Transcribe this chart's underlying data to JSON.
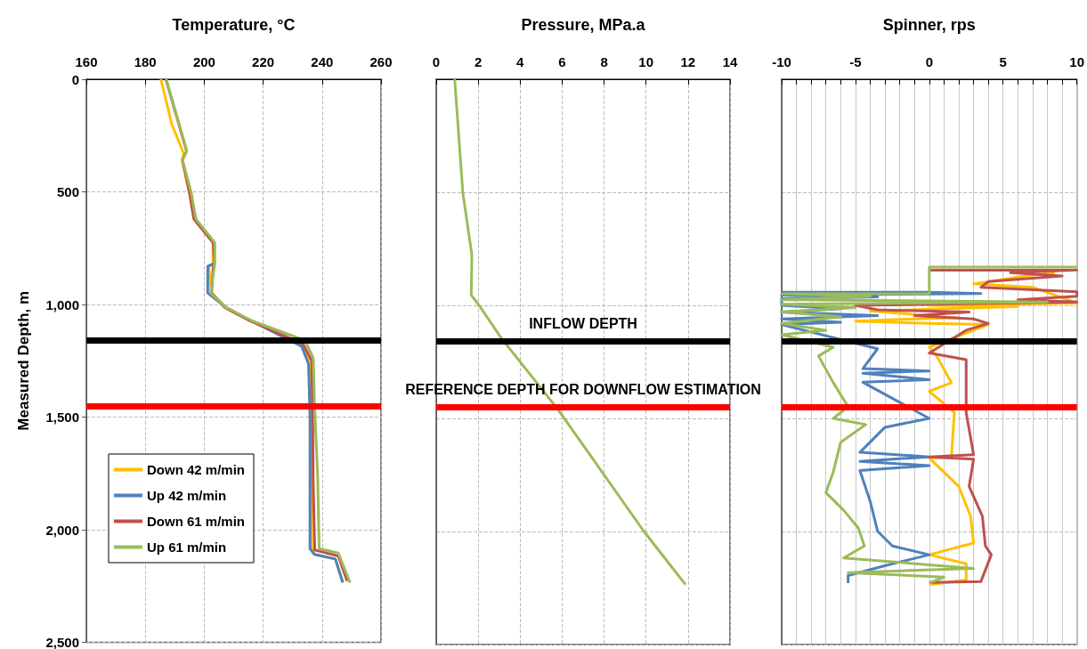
{
  "chart_data": [
    {
      "type": "line",
      "xlabel": "Temperature, °C",
      "ylabel": "Measured Depth, m",
      "xlim": [
        160,
        260
      ],
      "xticks": [
        160,
        180,
        200,
        220,
        240,
        260
      ],
      "ylim": [
        2500,
        0
      ],
      "yticks": [
        0,
        500,
        {
          "value": 1000,
          "label": "1,000"
        },
        {
          "value": 1500,
          "label": "1,500"
        },
        {
          "value": 2000,
          "label": "2,000"
        },
        {
          "value": 2500,
          "label": "2,500"
        }
      ],
      "grid": true,
      "legend": "bottom left",
      "marker": "none",
      "ref_lines": [
        {
          "axis": "y",
          "value": 1160,
          "color": "#000000"
        },
        {
          "axis": "y",
          "value": 1450,
          "color": "#ff0000"
        }
      ],
      "series": [
        {
          "name": "Down 42 m/min",
          "color": "#ffc000",
          "x": [
            185.3,
            189,
            193.1,
            192.5,
            195.1,
            196.5,
            203,
            203,
            201.5,
            202.5,
            207.5,
            216,
            233.5,
            236,
            236.2,
            236.3,
            236.5,
            237.5,
            244.5,
            247
          ],
          "values": [
            0,
            200,
            332,
            358,
            516,
            620,
            726,
            818,
            831,
            949,
            1014,
            1073,
            1180,
            1264,
            1500,
            1800,
            2084,
            2110,
            2130,
            2230
          ]
        },
        {
          "name": "Up 42 m/min",
          "color": "#4f81bd",
          "x": [
            203.5,
            201.2,
            201.2,
            207.5,
            216,
            233,
            235.4,
            235.9,
            235.9,
            237.4,
            244.5,
            247
          ],
          "values": [
            818,
            831,
            949,
            1014,
            1073,
            1185,
            1264,
            1500,
            2084,
            2110,
            2130,
            2235
          ]
        },
        {
          "name": "Down 61 m/min",
          "color": "#c0504d",
          "x": [
            187,
            194,
            192.6,
            195,
            196.5,
            203,
            203.5,
            203,
            202.5,
            207,
            215.5,
            233.5,
            236.5,
            236.8,
            237,
            237.5,
            245.5,
            248.5
          ],
          "values": [
            0,
            319,
            358,
            503,
            621,
            726,
            818,
            837,
            949,
            1014,
            1073,
            1175,
            1250,
            1500,
            1800,
            2090,
            2117,
            2228
          ]
        },
        {
          "name": "Up 61 m/min",
          "color": "#9bbb59",
          "x": [
            187.1,
            194.1,
            192.6,
            195.6,
            197.2,
            203.6,
            203.6,
            202.2,
            207.5,
            216.3,
            234,
            234.4,
            237,
            237.4,
            238.5,
            239,
            245.5,
            249.5
          ],
          "values": [
            0,
            319,
            358,
            503,
            621,
            726,
            818,
            949,
            1014,
            1073,
            1159,
            1165,
            1238,
            1434,
            1763,
            2084,
            2104,
            2235
          ]
        }
      ]
    },
    {
      "type": "line",
      "xlabel": "Pressure, MPa.a",
      "xlim": [
        0,
        14
      ],
      "xticks": [
        0,
        2,
        4,
        6,
        8,
        10,
        12,
        14
      ],
      "ylim": [
        2500,
        0
      ],
      "yticks": [
        0,
        500,
        1000,
        1500,
        2000,
        2500
      ],
      "grid": true,
      "marker": "none",
      "tick_labels": "x",
      "ref_lines": [
        {
          "axis": "y",
          "value": 1160,
          "label": "INFLOW DEPTH",
          "color": "#000000"
        },
        {
          "axis": "y",
          "value": 1450,
          "label": "REFERENCE DEPTH FOR DOWNFLOW ESTIMATION",
          "color": "#ff0000"
        }
      ],
      "series": [
        {
          "color": "#9bbb59",
          "x": [
            0.88,
            1.27,
            1.7,
            1.67,
            2.05,
            3.11,
            5.8,
            9.9,
            11.88
          ],
          "values": [
            0,
            503,
            778,
            955,
            1001,
            1146,
            1460,
            2000,
            2235
          ]
        }
      ]
    },
    {
      "type": "line",
      "xlabel": "Spinner, rps",
      "xlim": [
        -10,
        10
      ],
      "xticks": [
        -10,
        {
          "value": -9,
          "label": null
        },
        {
          "value": -8,
          "label": null
        },
        {
          "value": -7,
          "label": null
        },
        {
          "value": -6,
          "label": null
        },
        -5,
        {
          "value": -4,
          "label": null
        },
        {
          "value": -3,
          "label": null
        },
        {
          "value": -2,
          "label": null
        },
        {
          "value": -1,
          "label": null
        },
        0,
        {
          "value": 1,
          "label": null
        },
        {
          "value": 2,
          "label": null
        },
        {
          "value": 3,
          "label": null
        },
        {
          "value": 4,
          "label": null
        },
        5,
        {
          "value": 6,
          "label": null
        },
        {
          "value": 7,
          "label": null
        },
        {
          "value": 8,
          "label": null
        },
        {
          "value": 9,
          "label": null
        },
        10
      ],
      "ylim": [
        2500,
        0
      ],
      "yticks": [
        0,
        500,
        1000,
        1500,
        2000,
        2500
      ],
      "grid": true,
      "marker": "none",
      "tick_labels": "x",
      "ref_lines": [
        {
          "axis": "y",
          "value": 1160,
          "color": "#000000"
        },
        {
          "axis": "y",
          "value": 1450,
          "color": "#ff0000"
        }
      ],
      "series": [
        {
          "color": "#ffc000",
          "x": [
            8.5,
            6.5,
            3,
            7,
            10,
            0.1,
            6,
            -4,
            -1,
            0,
            2,
            -1,
            -5,
            0,
            4,
            0,
            0.5,
            1.5,
            0,
            1.7,
            1.5,
            0,
            2,
            2.8,
            3,
            0,
            2.5,
            2.5,
            0
          ],
          "values": [
            855,
            870,
            905,
            920,
            990,
            1000,
            1005,
            1025,
            1040,
            1050,
            1055,
            1060,
            1070,
            1080,
            1085,
            1185,
            1224,
            1342,
            1380,
            1474,
            1670,
            1675,
            1801,
            1933,
            2051,
            2103,
            2143,
            2215,
            2235
          ]
        },
        {
          "color": "#4f81bd",
          "x": [
            -10,
            0,
            3.5,
            -10,
            -3.5,
            -10,
            -10,
            -6,
            -10,
            -3.5,
            -10,
            -6,
            -10,
            -3.5,
            -4.5,
            0,
            -4.5,
            0,
            -4.5,
            0,
            -3,
            -4.7,
            0,
            -4.7,
            0,
            -4.7,
            -4,
            -3.5,
            -2.5,
            0,
            -2.5,
            -5.5,
            -5.5
          ],
          "values": [
            942,
            942,
            948,
            955,
            963,
            970,
            1000,
            1015,
            1030,
            1045,
            1060,
            1075,
            1085,
            1192,
            1280,
            1290,
            1300,
            1329,
            1340,
            1500,
            1539,
            1650,
            1670,
            1690,
            1709,
            1730,
            1867,
            1999,
            2064,
            2103,
            2143,
            2195,
            2228
          ]
        },
        {
          "color": "#c0504d",
          "x": [
            0,
            10,
            5.5,
            9,
            4,
            3.5,
            10,
            10,
            6,
            10,
            -5,
            -3.5,
            2.7,
            -1,
            3,
            4,
            2.5,
            0,
            2.5,
            2.5,
            3,
            0,
            3,
            2.7,
            3.6,
            3.8,
            4.2,
            3.5,
            0
          ],
          "values": [
            844,
            844,
            855,
            870,
            895,
            920,
            940,
            960,
            975,
            985,
            1000,
            1020,
            1030,
            1045,
            1060,
            1080,
            1110,
            1211,
            1240,
            1474,
            1660,
            1670,
            1680,
            1801,
            1933,
            2064,
            2103,
            2221,
            2225
          ]
        },
        {
          "color": "#9bbb59",
          "x": [
            10,
            0,
            0,
            -10,
            -4,
            -10,
            8,
            -10,
            -5,
            -10,
            -6,
            -10,
            -7,
            -10,
            -6.5,
            -7.5,
            -6.5,
            -5.5,
            -6.5,
            -4.3,
            -6,
            -6.5,
            -7,
            -5.8,
            -4.8,
            -4.4,
            -5.8,
            3,
            -5.5,
            1,
            0
          ],
          "values": [
            831,
            831,
            949,
            949,
            960,
            975,
            985,
            995,
            1010,
            1030,
            1050,
            1080,
            1110,
            1130,
            1185,
            1224,
            1342,
            1448,
            1500,
            1527,
            1605,
            1736,
            1828,
            1906,
            1985,
            2064,
            2117,
            2163,
            2182,
            2202,
            2228
          ]
        }
      ]
    }
  ]
}
